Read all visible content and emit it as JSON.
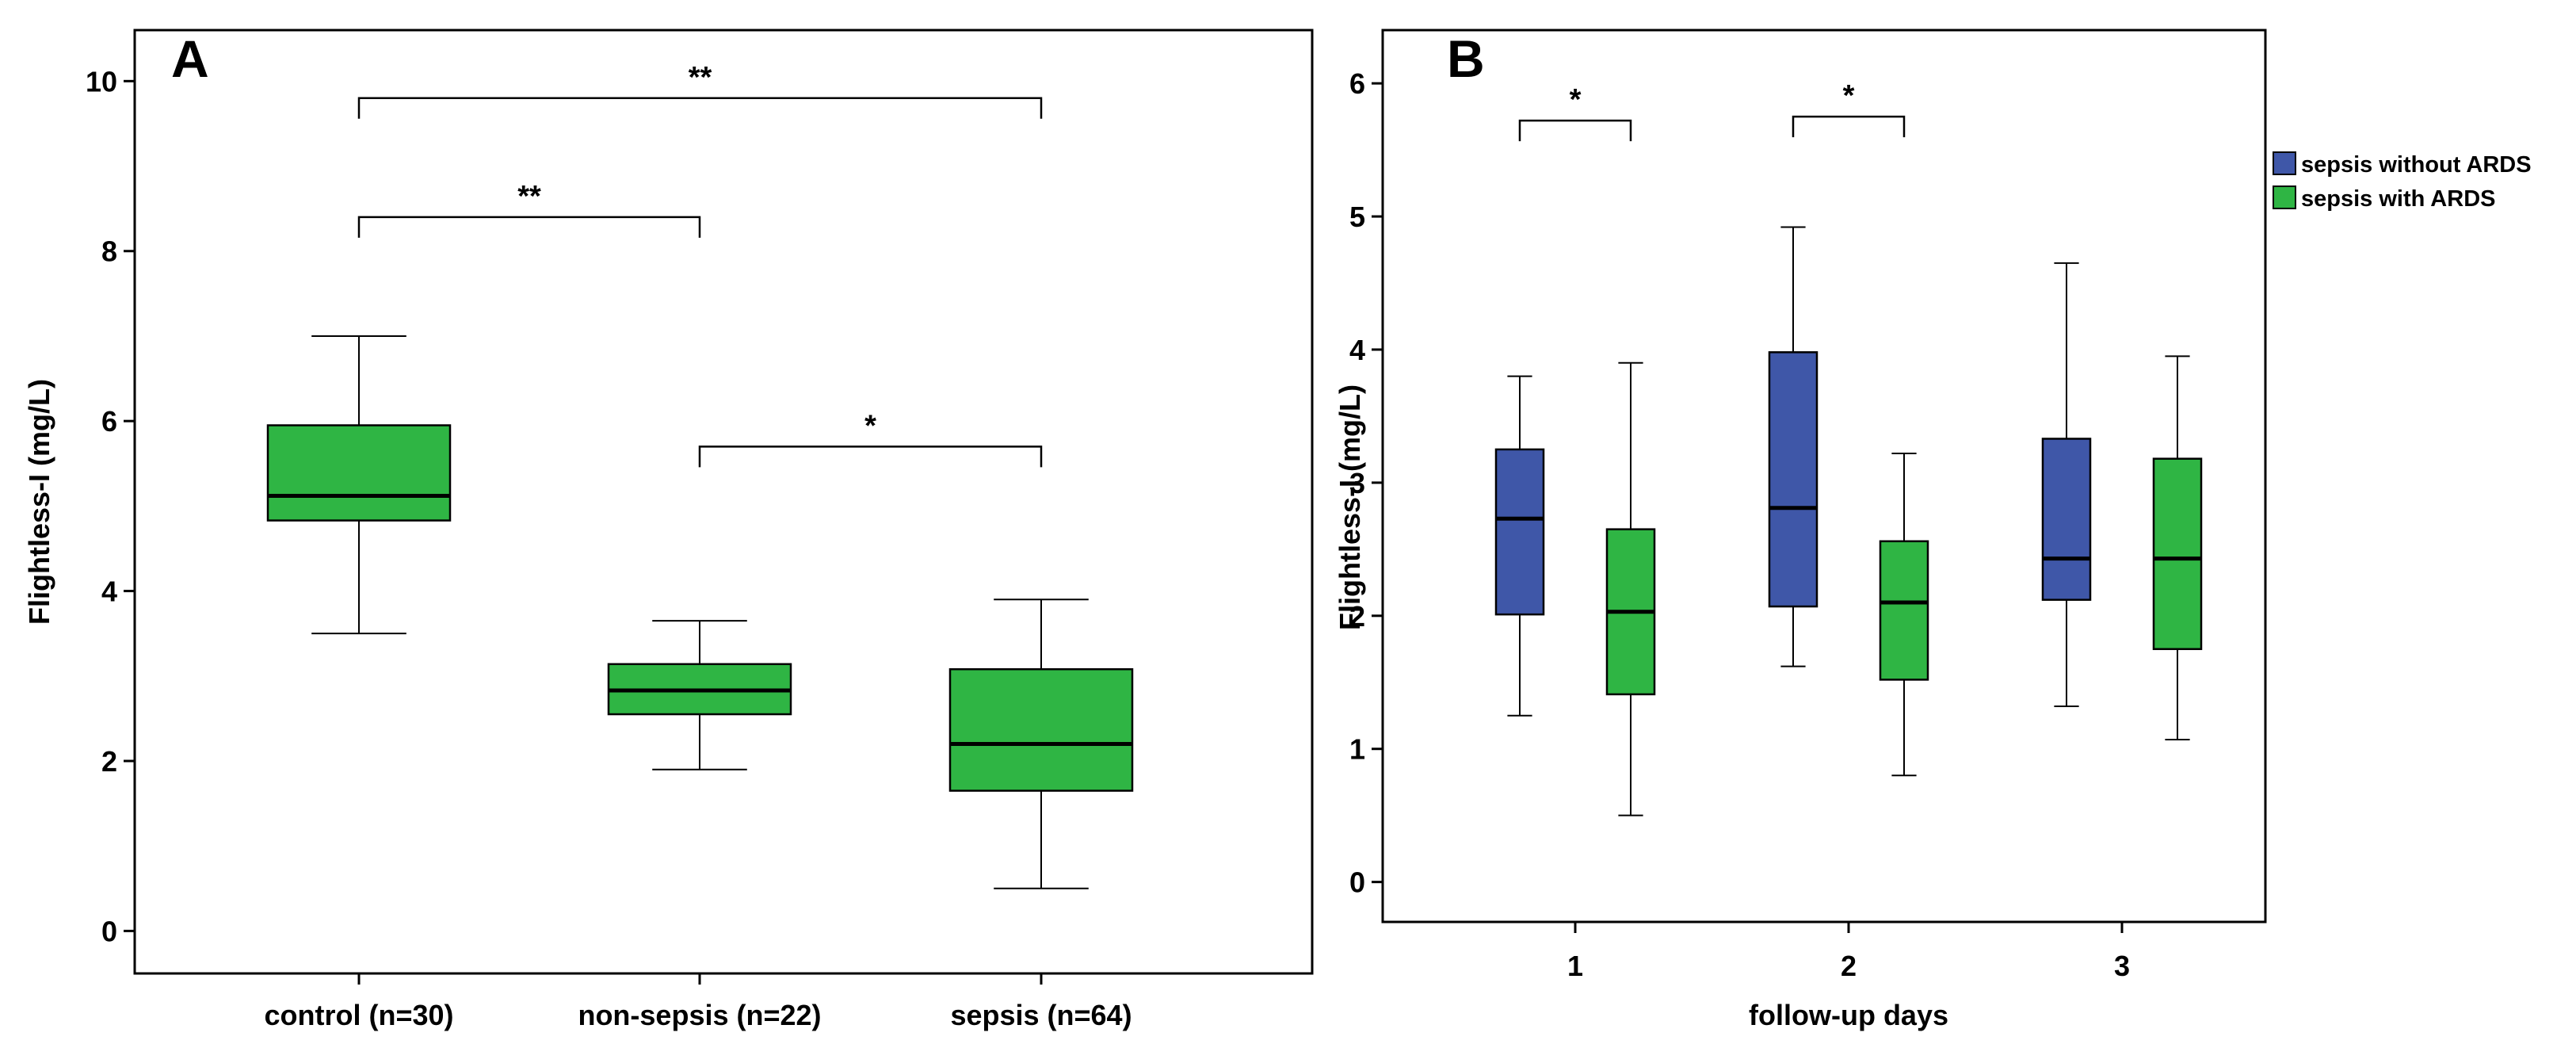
{
  "chart_data": [
    {
      "type": "boxplot",
      "panel": "A",
      "ylabel": "Flightless-I (mg/L)",
      "xlabel": "",
      "ylim": [
        -0.5,
        10.6
      ],
      "yticks": [
        0,
        2,
        4,
        6,
        8,
        10
      ],
      "color": "#2fb544",
      "categories": [
        "control (n=30)",
        "non-sepsis (n=22)",
        "sepsis (n=64)"
      ],
      "boxes": [
        {
          "category": "control (n=30)",
          "min": 3.5,
          "q1": 4.83,
          "median": 5.12,
          "q3": 5.95,
          "max": 7.0
        },
        {
          "category": "non-sepsis (n=22)",
          "min": 1.9,
          "q1": 2.55,
          "median": 2.83,
          "q3": 3.14,
          "max": 3.65
        },
        {
          "category": "sepsis (n=64)",
          "min": 0.5,
          "q1": 1.65,
          "median": 2.2,
          "q3": 3.08,
          "max": 3.9
        }
      ],
      "significance": [
        {
          "from": 0,
          "to": 2,
          "y": 9.8,
          "label": "**"
        },
        {
          "from": 0,
          "to": 1,
          "y": 8.4,
          "label": "**"
        },
        {
          "from": 1,
          "to": 2,
          "y": 5.7,
          "label": "*"
        }
      ]
    },
    {
      "type": "grouped-boxplot",
      "panel": "B",
      "ylabel": "Flightless-I (mg/L)",
      "xlabel": "follow-up days",
      "ylim": [
        -0.3,
        6.4
      ],
      "yticks": [
        0,
        1,
        2,
        3,
        4,
        5,
        6
      ],
      "categories": [
        "1",
        "2",
        "3"
      ],
      "legend_position": "top-right, outside plot",
      "series": [
        {
          "name": "sepsis without ARDS",
          "color": "#3f57a8",
          "boxes": [
            {
              "category": "1",
              "min": 1.25,
              "q1": 2.01,
              "median": 2.73,
              "q3": 3.25,
              "max": 3.8
            },
            {
              "category": "2",
              "min": 1.62,
              "q1": 2.07,
              "median": 2.81,
              "q3": 3.98,
              "max": 4.92
            },
            {
              "category": "3",
              "min": 1.32,
              "q1": 2.12,
              "median": 2.43,
              "q3": 3.33,
              "max": 4.65
            }
          ]
        },
        {
          "name": "sepsis with ARDS",
          "color": "#2fb544",
          "boxes": [
            {
              "category": "1",
              "min": 0.5,
              "q1": 1.41,
              "median": 2.03,
              "q3": 2.65,
              "max": 3.9
            },
            {
              "category": "2",
              "min": 0.8,
              "q1": 1.52,
              "median": 2.1,
              "q3": 2.56,
              "max": 3.22
            },
            {
              "category": "3",
              "min": 1.07,
              "q1": 1.75,
              "median": 2.43,
              "q3": 3.18,
              "max": 3.95
            }
          ]
        }
      ],
      "significance": [
        {
          "category": 0,
          "y": 5.72,
          "label": "*"
        },
        {
          "category": 1,
          "y": 5.75,
          "label": "*"
        }
      ]
    }
  ]
}
